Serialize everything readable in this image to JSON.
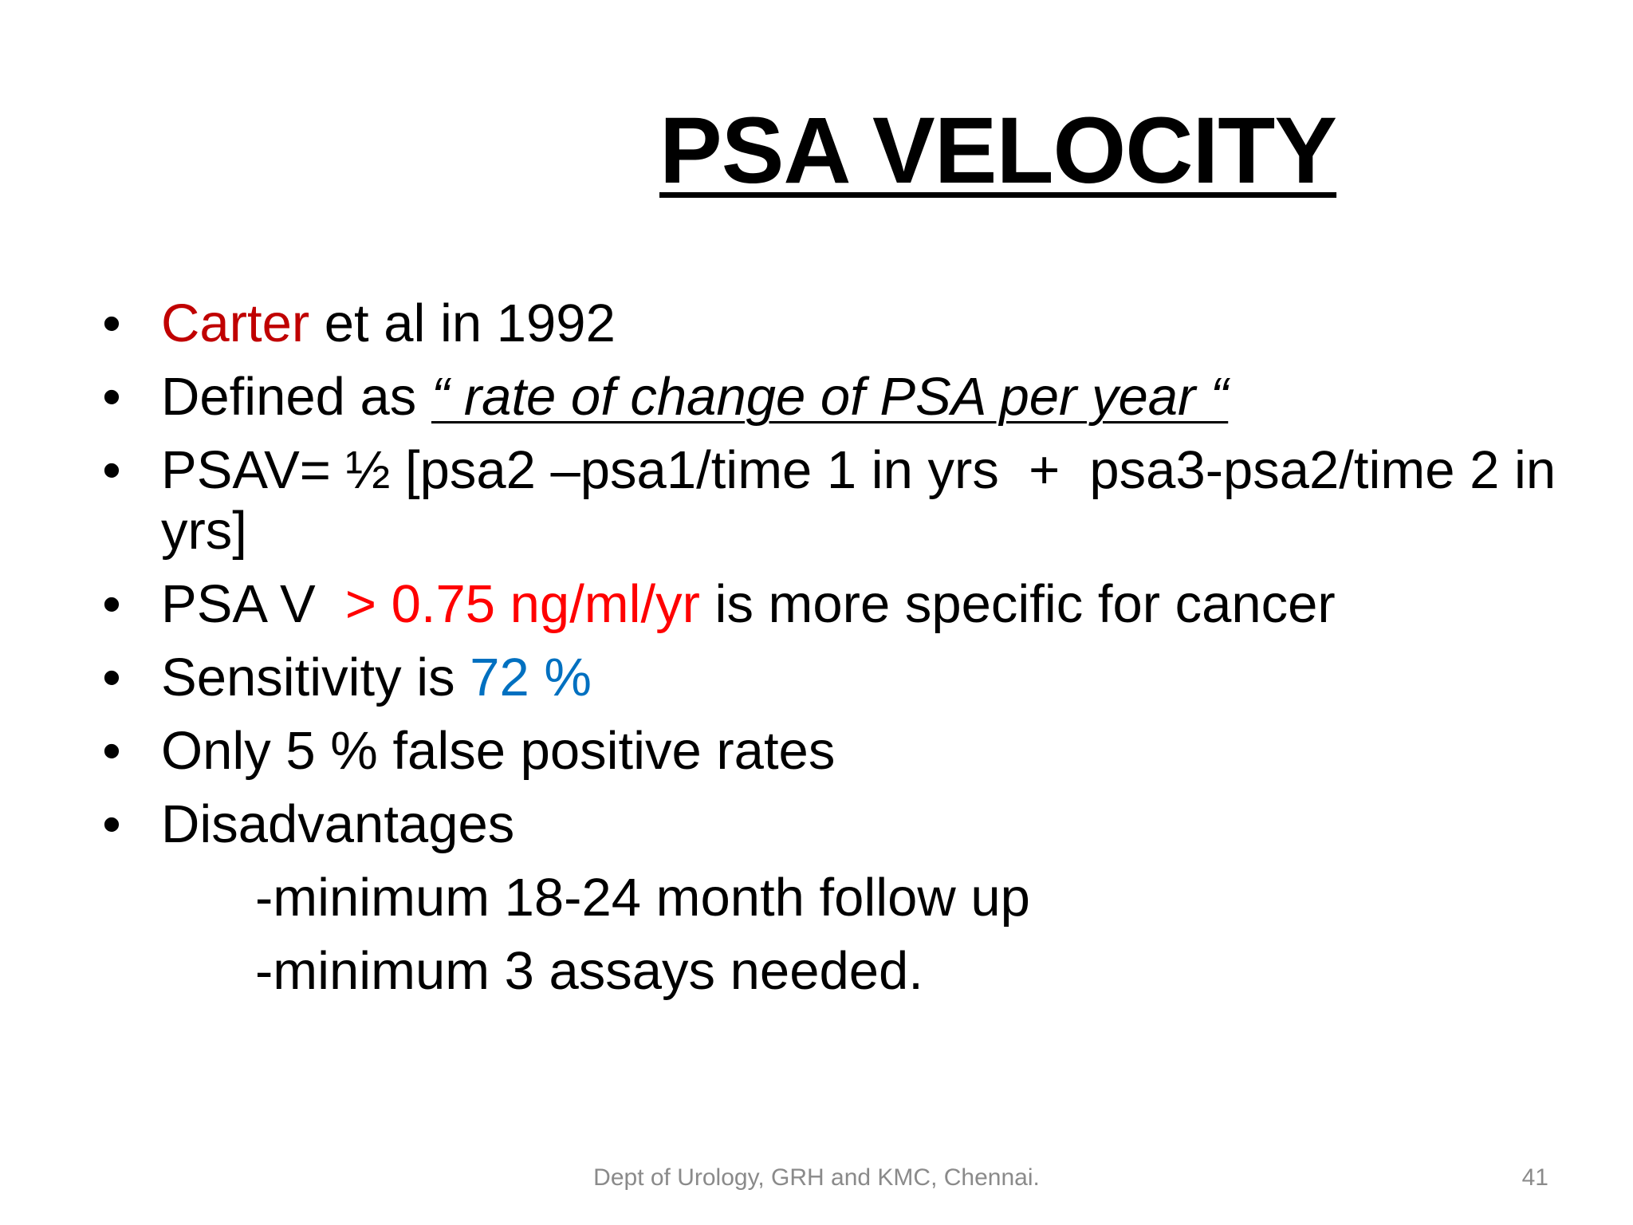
{
  "slide": {
    "title": "PSA VELOCITY",
    "bullet_char": "•",
    "bullets": [
      {
        "highlight": "Carter",
        "rest": " et al in 1992"
      },
      {
        "prefix": "Defined as ",
        "quote": "“ rate of change of PSA per year “"
      },
      {
        "text": "PSAV= ½ [psa2 –psa1/time 1 in yrs  +  psa3-psa2/time 2 in yrs]"
      },
      {
        "prefix": "PSA V  ",
        "highlight": "> 0.75 ng/ml/yr",
        "rest": " is more specific for cancer"
      },
      {
        "prefix": "Sensitivity is ",
        "highlight": "72 %"
      },
      {
        "text": "Only 5 % false positive rates"
      },
      {
        "text": "Disadvantages",
        "sub_items": [
          "-minimum 18-24 month follow up",
          "-minimum 3 assays needed."
        ]
      }
    ],
    "footer": "Dept of Urology, GRH and KMC, Chennai.",
    "page_number": "41"
  },
  "colors": {
    "carter": "#c00000",
    "threshold": "#ff0000",
    "sensitivity": "#0070c0"
  }
}
